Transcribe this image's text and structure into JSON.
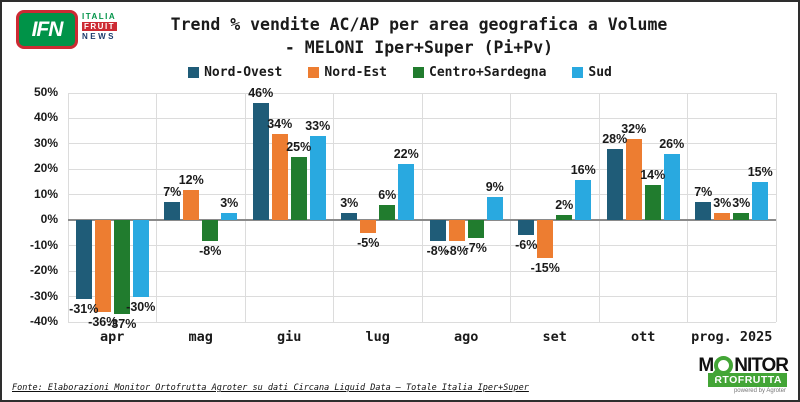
{
  "header": {
    "logo": {
      "ifn": "IFN",
      "italia": "ITALIA",
      "fruit": "FRUIT",
      "news": "NEWS"
    },
    "title_line1": "Trend % vendite AC/AP per area geografica a Volume",
    "title_line2": "- MELONI Iper+Super (Pi+Pv)"
  },
  "chart_data": {
    "type": "bar",
    "title": "Trend % vendite AC/AP per area geografica a Volume - MELONI Iper+Super (Pi+Pv)",
    "categories": [
      "apr",
      "mag",
      "giu",
      "lug",
      "ago",
      "set",
      "ott",
      "prog. 2025"
    ],
    "series": [
      {
        "name": "Nord-Ovest",
        "color": "#1f5c78",
        "values": [
          -31,
          7,
          46,
          3,
          -8,
          -6,
          28,
          7
        ]
      },
      {
        "name": "Nord-Est",
        "color": "#ed7d31",
        "values": [
          -36,
          12,
          34,
          -5,
          -8,
          -15,
          32,
          3
        ]
      },
      {
        "name": "Centro+Sardegna",
        "color": "#217c2e",
        "values": [
          -37,
          -8,
          25,
          6,
          -7,
          2,
          14,
          3
        ]
      },
      {
        "name": "Sud",
        "color": "#29a9e0",
        "values": [
          -30,
          3,
          33,
          22,
          9,
          16,
          26,
          15
        ]
      }
    ],
    "ylim": [
      -40,
      50
    ],
    "ytick_step": 10,
    "ytick_format": "{v}%",
    "value_label_format": "{v}%",
    "grid": true,
    "legend_position": "top",
    "zero_line_color": "#8a8a8a",
    "gridline_color": "#dcdcdc"
  },
  "footer": {
    "source": "Fonte: Elaborazioni Monitor Ortofrutta Agroter su dati Circana Liquid Data – Totale Italia Iper+Super",
    "monitor_logo": {
      "m": "M",
      "nitor": "NITOR",
      "rtofrutta": "RTOFRUTTA",
      "powered": "powered by Agroter"
    }
  }
}
